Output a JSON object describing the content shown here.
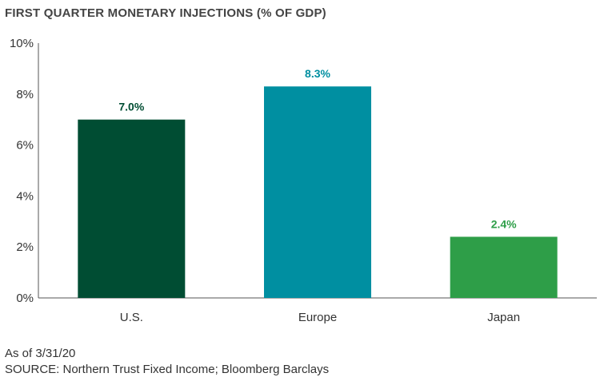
{
  "chart_data": {
    "type": "bar",
    "title": "FIRST QUARTER MONETARY INJECTIONS (% OF GDP)",
    "categories": [
      "U.S.",
      "Europe",
      "Japan"
    ],
    "values": [
      7.0,
      8.3,
      2.4
    ],
    "value_labels": [
      "7.0%",
      "8.3%",
      "2.4%"
    ],
    "colors": [
      "#004d33",
      "#008fa1",
      "#2e9e48"
    ],
    "label_colors": [
      "#004d33",
      "#008fa1",
      "#2e9e48"
    ],
    "ylim": [
      0,
      10
    ],
    "yticks": [
      0,
      2,
      4,
      6,
      8,
      10
    ],
    "ytick_labels": [
      "0%",
      "2%",
      "4%",
      "6%",
      "8%",
      "10%"
    ],
    "xlabel": "",
    "ylabel": "",
    "grid": false,
    "legend": "none"
  },
  "footnotes": {
    "as_of": "As of 3/31/20",
    "source": "SOURCE: Northern Trust Fixed Income; Bloomberg Barclays"
  }
}
